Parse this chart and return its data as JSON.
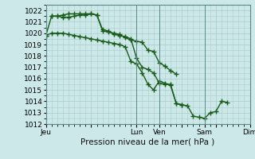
{
  "bg_color": "#cce8e8",
  "grid_color": "#aacccc",
  "line_color": "#1a5c1a",
  "line_width": 1.0,
  "marker": "+",
  "marker_size": 4,
  "marker_edge_width": 1.0,
  "ylim": [
    1012,
    1022.5
  ],
  "yticks": [
    1012,
    1013,
    1014,
    1015,
    1016,
    1017,
    1018,
    1019,
    1020,
    1021,
    1022
  ],
  "xlabel": "Pression niveau de la mer( hPa )",
  "xlabel_fontsize": 7.5,
  "tick_fontsize": 6.5,
  "xtick_labels": [
    "Jeu",
    "",
    "Lun",
    "Ven",
    "",
    "Sam",
    "",
    "Dim"
  ],
  "xtick_positions": [
    0,
    48,
    96,
    120,
    144,
    168,
    180,
    216
  ],
  "xlim": [
    0,
    216
  ],
  "vlines": [
    0,
    96,
    120,
    168,
    216
  ],
  "series1": [
    [
      0,
      1019.8
    ],
    [
      6,
      1020.0
    ],
    [
      12,
      1020.0
    ],
    [
      18,
      1020.0
    ],
    [
      24,
      1019.9
    ],
    [
      30,
      1019.8
    ],
    [
      36,
      1019.7
    ],
    [
      42,
      1019.6
    ],
    [
      48,
      1019.5
    ],
    [
      54,
      1019.4
    ],
    [
      60,
      1019.3
    ],
    [
      66,
      1019.2
    ],
    [
      72,
      1019.1
    ],
    [
      78,
      1019.0
    ],
    [
      84,
      1018.8
    ],
    [
      90,
      1017.5
    ],
    [
      96,
      1017.3
    ],
    [
      102,
      1016.5
    ],
    [
      108,
      1015.5
    ],
    [
      114,
      1015.0
    ],
    [
      120,
      1015.8
    ],
    [
      126,
      1015.6
    ],
    [
      132,
      1015.4
    ],
    [
      138,
      1013.8
    ],
    [
      144,
      1013.7
    ],
    [
      150,
      1013.6
    ],
    [
      156,
      1012.7
    ],
    [
      162,
      1012.6
    ],
    [
      168,
      1012.5
    ],
    [
      174,
      1013.0
    ],
    [
      180,
      1013.1
    ],
    [
      186,
      1014.0
    ],
    [
      192,
      1013.9
    ]
  ],
  "series2": [
    [
      0,
      1019.8
    ],
    [
      6,
      1021.5
    ],
    [
      12,
      1021.5
    ],
    [
      18,
      1021.4
    ],
    [
      24,
      1021.4
    ],
    [
      30,
      1021.5
    ],
    [
      36,
      1021.6
    ],
    [
      42,
      1021.6
    ],
    [
      48,
      1021.7
    ],
    [
      54,
      1021.6
    ],
    [
      60,
      1020.3
    ],
    [
      66,
      1020.2
    ],
    [
      72,
      1019.9
    ],
    [
      78,
      1019.8
    ],
    [
      84,
      1019.7
    ],
    [
      90,
      1019.5
    ],
    [
      96,
      1017.8
    ],
    [
      102,
      1017.0
    ],
    [
      108,
      1016.8
    ],
    [
      114,
      1016.5
    ],
    [
      120,
      1015.6
    ],
    [
      126,
      1015.5
    ],
    [
      132,
      1015.5
    ],
    [
      138,
      1013.8
    ],
    [
      144,
      1013.7
    ]
  ],
  "series3": [
    [
      6,
      1021.5
    ],
    [
      12,
      1021.5
    ],
    [
      18,
      1021.6
    ],
    [
      24,
      1021.7
    ],
    [
      30,
      1021.7
    ],
    [
      36,
      1021.7
    ],
    [
      42,
      1021.7
    ],
    [
      48,
      1021.7
    ],
    [
      54,
      1021.6
    ],
    [
      60,
      1020.2
    ],
    [
      66,
      1020.1
    ],
    [
      72,
      1020.0
    ],
    [
      78,
      1019.9
    ],
    [
      84,
      1019.6
    ],
    [
      90,
      1019.4
    ],
    [
      96,
      1019.3
    ],
    [
      102,
      1019.2
    ],
    [
      108,
      1018.5
    ],
    [
      114,
      1018.4
    ],
    [
      120,
      1017.4
    ],
    [
      126,
      1017.1
    ],
    [
      132,
      1016.7
    ],
    [
      138,
      1016.4
    ]
  ]
}
